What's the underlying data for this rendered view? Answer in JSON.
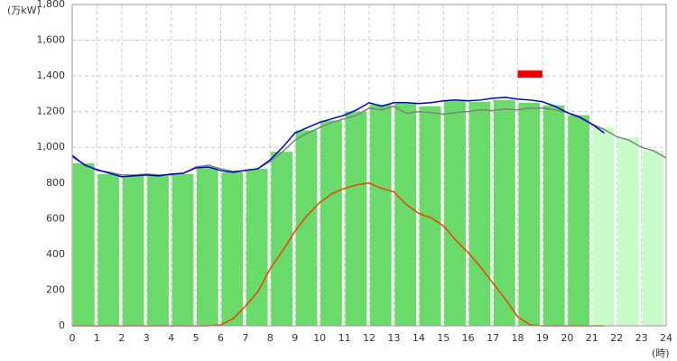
{
  "chart_data": {
    "type": "bar-line",
    "y_label": "(万kW)",
    "x_label": "(時)",
    "xlim": [
      0,
      24
    ],
    "xticks": [
      0,
      1,
      2,
      3,
      4,
      5,
      6,
      7,
      8,
      9,
      10,
      11,
      12,
      13,
      14,
      15,
      16,
      17,
      18,
      19,
      20,
      21,
      22,
      23,
      24
    ],
    "ylim": [
      0,
      1800
    ],
    "yticks": [
      0,
      200,
      400,
      600,
      800,
      {
        "value": 1000,
        "label": "1,000"
      },
      {
        "value": 1200,
        "label": "1,200"
      },
      {
        "value": 1400,
        "label": "1,400"
      },
      {
        "value": 1600,
        "label": "1,600"
      },
      {
        "value": 1800,
        "label": "1,800"
      }
    ],
    "grid": true,
    "bars": [
      {
        "color": "#6adb6a",
        "values": [
          910,
          850,
          840,
          840,
          850,
          890,
          860,
          880,
          975,
          1095,
          1150,
          1200,
          1240,
          1245,
          1230,
          1260,
          1255,
          1265,
          1250,
          1235,
          1180,
          null,
          null,
          null
        ]
      },
      {
        "color": "#c8fcc8",
        "values": [
          null,
          null,
          null,
          null,
          null,
          null,
          null,
          null,
          null,
          null,
          null,
          null,
          null,
          null,
          null,
          null,
          null,
          null,
          null,
          null,
          null,
          1110,
          1055,
          980
        ]
      }
    ],
    "x": [
      0,
      0.5,
      1,
      1.5,
      2,
      2.5,
      3,
      3.5,
      4,
      4.5,
      5,
      5.5,
      6,
      6.5,
      7,
      7.5,
      8,
      8.5,
      9,
      9.5,
      10,
      10.5,
      11,
      11.5,
      12,
      12.5,
      13,
      13.5,
      14,
      14.5,
      15,
      15.5,
      16,
      16.5,
      17,
      17.5,
      18,
      18.5,
      19,
      19.5,
      20,
      20.5,
      21,
      21.5,
      22,
      22.5,
      23,
      23.5,
      24
    ],
    "series": [
      {
        "color": "#808080",
        "values": [
          945,
          905,
          870,
          860,
          845,
          845,
          850,
          845,
          845,
          855,
          890,
          900,
          880,
          865,
          870,
          880,
          920,
          975,
          1040,
          1080,
          1110,
          1140,
          1160,
          1180,
          1220,
          1210,
          1230,
          1190,
          1200,
          1195,
          1185,
          1195,
          1200,
          1210,
          1205,
          1215,
          1210,
          1220,
          1220,
          1210,
          1195,
          1165,
          1130,
          1100,
          1060,
          1040,
          1000,
          980,
          940
        ]
      },
      {
        "color": "#0000cc",
        "values": [
          955,
          900,
          875,
          855,
          835,
          840,
          845,
          840,
          850,
          855,
          885,
          890,
          870,
          860,
          870,
          880,
          930,
          1000,
          1080,
          1110,
          1140,
          1160,
          1180,
          1210,
          1250,
          1230,
          1250,
          1250,
          1245,
          1250,
          1260,
          1265,
          1260,
          1265,
          1275,
          1280,
          1270,
          1265,
          1255,
          1230,
          1195,
          1170,
          1130,
          1080,
          null,
          null,
          null,
          null,
          null
        ]
      },
      {
        "color": "#ee4400",
        "values": [
          0,
          0,
          0,
          0,
          0,
          0,
          0,
          0,
          0,
          0,
          0,
          0,
          5,
          40,
          110,
          190,
          320,
          420,
          530,
          620,
          690,
          740,
          770,
          790,
          800,
          770,
          750,
          680,
          630,
          605,
          560,
          480,
          410,
          330,
          240,
          150,
          50,
          5,
          0,
          0,
          0,
          0,
          0,
          0,
          null,
          null,
          null,
          null,
          null
        ]
      }
    ],
    "peak_forecast": {
      "x": [
        18,
        19
      ],
      "value": 1410,
      "color": "#ee0000"
    }
  }
}
